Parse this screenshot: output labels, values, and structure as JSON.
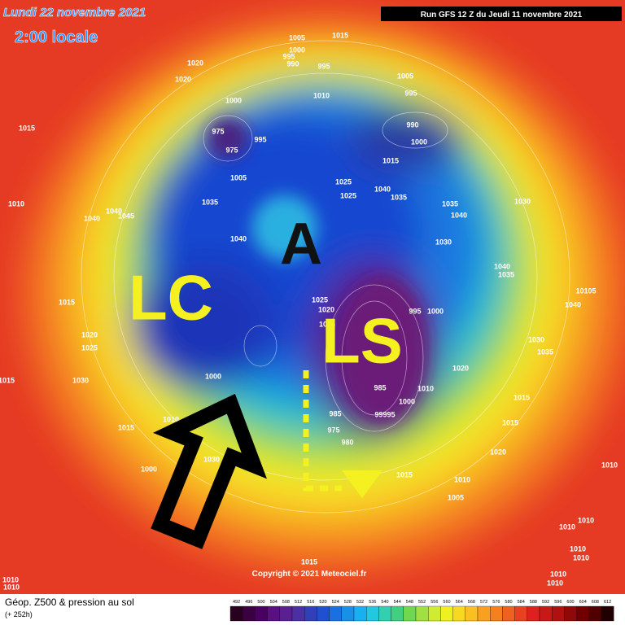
{
  "header": {
    "date": "Lundi 22 novembre 2021",
    "time": "2:00 locale",
    "run": "Run GFS 12 Z du Jeudi 11 novembre 2021"
  },
  "annotations": {
    "left": "LC",
    "center": "A",
    "right": "LS"
  },
  "pressure_labels": [
    "1005",
    "1015",
    "1000",
    "995",
    "990",
    "995",
    "1020",
    "1020",
    "1005",
    "1010",
    "995",
    "990",
    "1000",
    "975",
    "975",
    "995",
    "1000",
    "1015",
    "1005",
    "1015",
    "1025",
    "1025",
    "1040",
    "1035",
    "1035",
    "1035",
    "1040",
    "1030",
    "1040",
    "1040",
    "1045",
    "1010",
    "1040",
    "1030",
    "1040",
    "1035",
    "10105",
    "1040",
    "995",
    "1000",
    "1025",
    "1020",
    "1025",
    "1015",
    "1020",
    "1025",
    "1030",
    "1035",
    "1015",
    "1030",
    "1000",
    "985",
    "1000",
    "1010",
    "1020",
    "985",
    "975",
    "980",
    "99995",
    "1015",
    "1015",
    "1020",
    "1015",
    "1010",
    "1030",
    "1000",
    "1015",
    "1010",
    "1005",
    "1010",
    "1010",
    "1010",
    "1010",
    "1010",
    "1010",
    "1010",
    "1015",
    "1010",
    "1010"
  ],
  "copyright": "Copyright © 2021 Meteociel.fr",
  "footer": {
    "title": "Géop. Z500 & pression au sol",
    "lead": "(+ 252h)"
  },
  "colorbar": {
    "labels": [
      "492",
      "496",
      "500",
      "504",
      "508",
      "512",
      "516",
      "520",
      "524",
      "528",
      "532",
      "536",
      "540",
      "544",
      "548",
      "552",
      "556",
      "560",
      "564",
      "568",
      "572",
      "576",
      "580",
      "584",
      "588",
      "592",
      "596",
      "600",
      "604",
      "608",
      "612"
    ]
  }
}
